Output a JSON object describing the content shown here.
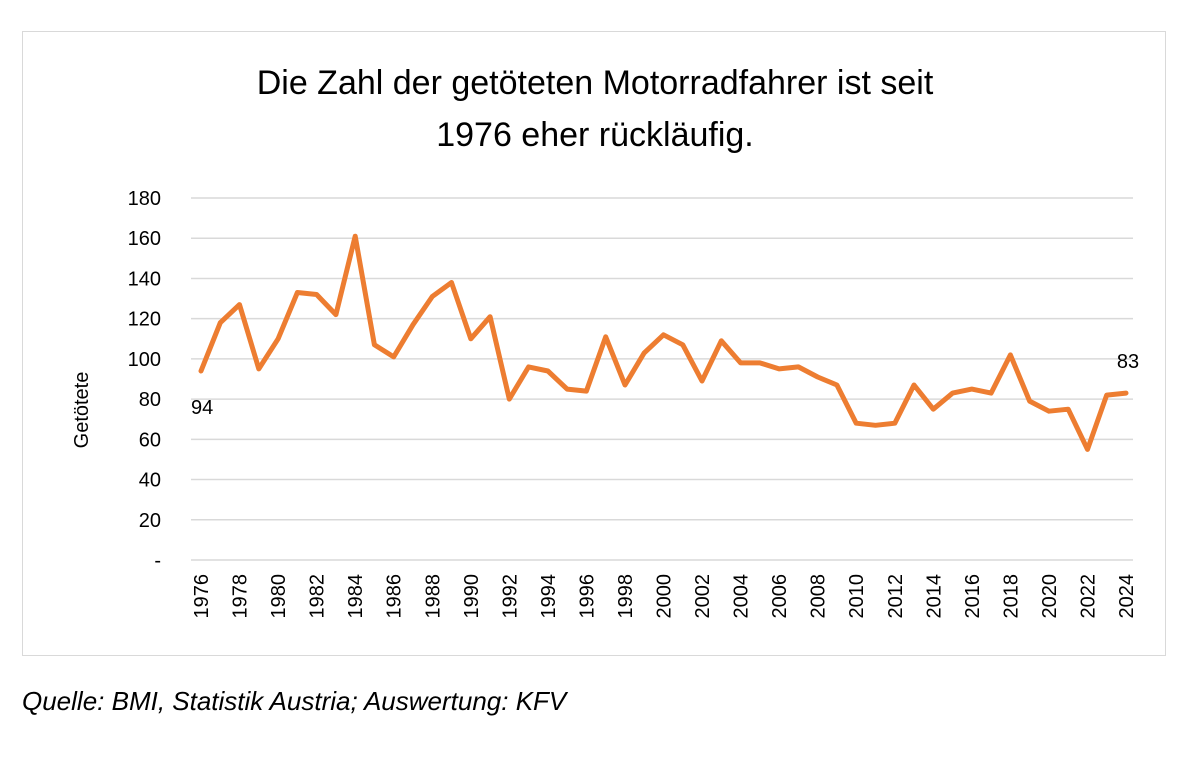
{
  "chart_data": {
    "type": "line",
    "title_lines": [
      "Die Zahl der getöteten Motorradfahrer ist seit",
      "1976 eher rückläufig."
    ],
    "xlabel": "",
    "ylabel": "Getötete",
    "ylim": [
      0,
      180
    ],
    "y_ticks": [
      0,
      20,
      40,
      60,
      80,
      100,
      120,
      140,
      160,
      180
    ],
    "y_tick_labels": [
      "-",
      "20",
      "40",
      "60",
      "80",
      "100",
      "120",
      "140",
      "160",
      "180"
    ],
    "x_tick_labels": [
      "1976",
      "1978",
      "1980",
      "1982",
      "1984",
      "1986",
      "1988",
      "1990",
      "1992",
      "1994",
      "1996",
      "1998",
      "2000",
      "2002",
      "2004",
      "2006",
      "2008",
      "2010",
      "2012",
      "2014",
      "2016",
      "2018",
      "2020",
      "2022",
      "2024"
    ],
    "grid": true,
    "legend": "none",
    "series": [
      {
        "color": "#ED7D31",
        "x": [
          1976,
          1977,
          1978,
          1979,
          1980,
          1981,
          1982,
          1983,
          1984,
          1985,
          1986,
          1987,
          1988,
          1989,
          1990,
          1991,
          1992,
          1993,
          1994,
          1995,
          1996,
          1997,
          1998,
          1999,
          2000,
          2001,
          2002,
          2003,
          2004,
          2005,
          2006,
          2007,
          2008,
          2009,
          2010,
          2011,
          2012,
          2013,
          2014,
          2015,
          2016,
          2017,
          2018,
          2019,
          2020,
          2021,
          2022,
          2023,
          2024
        ],
        "values": [
          94,
          118,
          127,
          95,
          110,
          133,
          132,
          122,
          161,
          107,
          101,
          117,
          131,
          138,
          110,
          121,
          80,
          96,
          94,
          85,
          84,
          111,
          87,
          103,
          112,
          107,
          89,
          109,
          98,
          98,
          95,
          96,
          91,
          87,
          68,
          67,
          68,
          87,
          75,
          83,
          85,
          83,
          102,
          79,
          74,
          75,
          55,
          82,
          83
        ]
      }
    ],
    "data_labels": [
      {
        "x": 1976,
        "text": "94"
      },
      {
        "x": 2024,
        "text": "83"
      }
    ]
  },
  "source_note": "Quelle: BMI, Statistik Austria; Auswertung: KFV"
}
